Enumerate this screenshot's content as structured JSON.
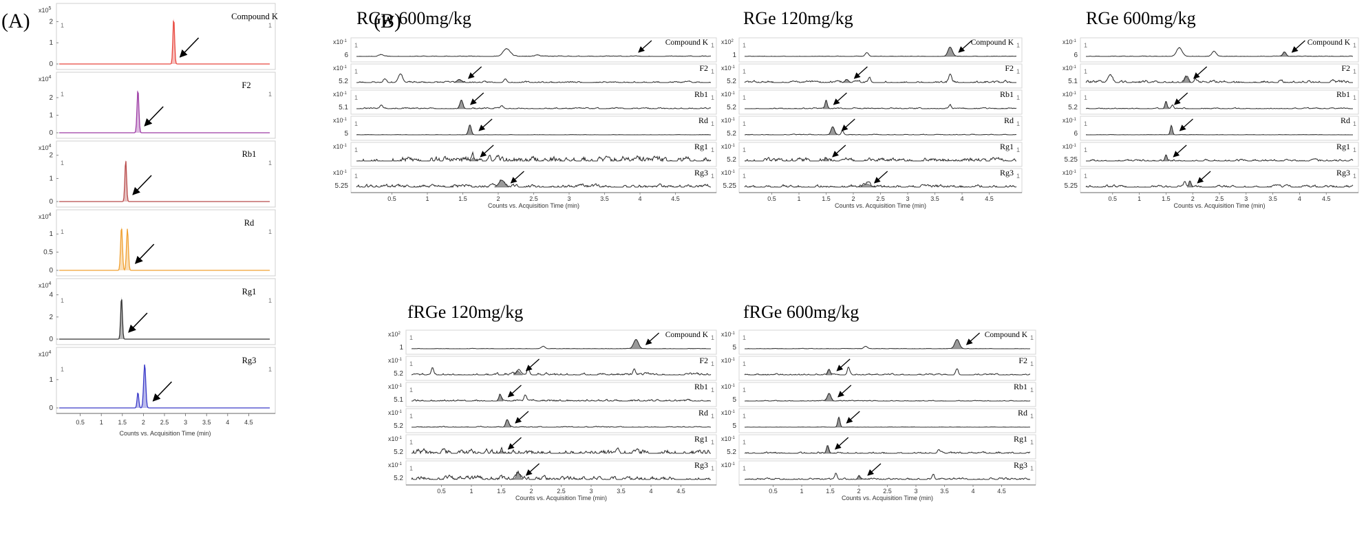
{
  "figure": {
    "panel_a_label": "(A)",
    "panel_b_label": "(B)",
    "xlabel": "Counts vs. Acquisition Time (min)",
    "x_ticks": [
      "0.5",
      "1",
      "1.5",
      "2",
      "2.5",
      "3",
      "3.5",
      "4",
      "4.5"
    ],
    "marker": "1"
  },
  "chart_data": [
    {
      "type": "line",
      "title": "(A)",
      "xlabel": "Counts vs. Acquisition Time (min)",
      "xlim": [
        0,
        5
      ],
      "traces": [
        {
          "name": "Compound K",
          "color": "#e8453c",
          "exponent": "5",
          "yticks": [
            "0",
            "1",
            "2"
          ],
          "ymax": 2.4,
          "peaks": [
            {
              "x": 2.72,
              "h": 2.15,
              "w": 0.02
            }
          ],
          "arrow_x": 2.82
        },
        {
          "name": "F2",
          "color": "#9c3aa4",
          "exponent": "4",
          "yticks": [
            "0",
            "1",
            "2"
          ],
          "ymax": 2.9,
          "peaks": [
            {
              "x": 1.87,
              "h": 2.45,
              "w": 0.022
            }
          ],
          "arrow_x": 1.98
        },
        {
          "name": "Rb1",
          "color": "#b84a4a",
          "exponent": "4",
          "yticks": [
            "0",
            "1",
            "2"
          ],
          "ymax": 2.2,
          "peaks": [
            {
              "x": 1.58,
              "h": 1.8,
              "w": 0.02
            }
          ],
          "arrow_x": 1.7
        },
        {
          "name": "Rd",
          "color": "#f0a030",
          "exponent": "4",
          "yticks": [
            "0",
            "0.5",
            "1"
          ],
          "ymax": 1.4,
          "peaks": [
            {
              "x": 1.48,
              "h": 1.2,
              "w": 0.022
            },
            {
              "x": 1.62,
              "h": 1.15,
              "w": 0.022
            }
          ],
          "arrow_x": 1.76
        },
        {
          "name": "Rg1",
          "color": "#333333",
          "exponent": "4",
          "yticks": [
            "0",
            "2",
            "4"
          ],
          "ymax": 4.6,
          "peaks": [
            {
              "x": 1.48,
              "h": 3.8,
              "w": 0.02
            }
          ],
          "arrow_x": 1.6
        },
        {
          "name": "Rg3",
          "color": "#3a3ac8",
          "exponent": "4",
          "yticks": [
            "0",
            "1"
          ],
          "ymax": 1.8,
          "peaks": [
            {
              "x": 1.87,
              "h": 0.55,
              "w": 0.02
            },
            {
              "x": 2.03,
              "h": 1.55,
              "w": 0.025
            }
          ],
          "arrow_x": 2.18
        }
      ]
    },
    {
      "type": "line",
      "title": "RGw 600mg/kg",
      "xlabel": "Counts vs. Acquisition Time (min)",
      "xlim": [
        0,
        5
      ],
      "traces": [
        {
          "name": "Compound K",
          "exponent": "-1",
          "ytick": "6",
          "peaks": [
            {
              "x": 2.12,
              "h": 0.6,
              "w": 0.05
            },
            {
              "x": 0.35,
              "h": 0.15,
              "w": 0.03
            },
            {
              "x": 2.55,
              "h": 0.12,
              "w": 0.03
            }
          ],
          "filled": [],
          "arrow_x": 3.95,
          "noise": 0.05,
          "seed": 11
        },
        {
          "name": "F2",
          "exponent": "-1",
          "ytick": "5.2",
          "peaks": [
            {
              "x": 0.62,
              "h": 0.7,
              "w": 0.03
            },
            {
              "x": 0.4,
              "h": 0.3,
              "w": 0.02
            },
            {
              "x": 1.45,
              "h": 0.25,
              "w": 0.03
            },
            {
              "x": 2.1,
              "h": 0.3,
              "w": 0.02
            }
          ],
          "filled": [
            1.45
          ],
          "arrow_x": 1.55,
          "noise": 0.12,
          "seed": 23
        },
        {
          "name": "Rb1",
          "exponent": "-1",
          "ytick": "5.1",
          "peaks": [
            {
              "x": 1.48,
              "h": 0.7,
              "w": 0.02
            },
            {
              "x": 0.35,
              "h": 0.3,
              "w": 0.02
            },
            {
              "x": 2.05,
              "h": 0.2,
              "w": 0.02
            }
          ],
          "filled": [
            1.48
          ],
          "arrow_x": 1.58,
          "noise": 0.1,
          "seed": 31
        },
        {
          "name": "Rd",
          "exponent": "-1",
          "ytick": "5",
          "peaks": [
            {
              "x": 1.6,
              "h": 0.8,
              "w": 0.02
            }
          ],
          "filled": [
            1.6
          ],
          "arrow_x": 1.7,
          "noise": 0.02,
          "seed": 41
        },
        {
          "name": "Rg1",
          "exponent": "-1",
          "ytick": "",
          "peaks": [
            {
              "x": 1.65,
              "h": 0.25,
              "w": 0.02
            }
          ],
          "filled": [
            1.65
          ],
          "arrow_x": 1.72,
          "noise": 0.45,
          "seed": 53
        },
        {
          "name": "Rg3",
          "exponent": "-1",
          "ytick": "5.25",
          "peaks": [
            {
              "x": 2.05,
              "h": 0.55,
              "w": 0.04
            }
          ],
          "filled": [
            2.05
          ],
          "arrow_x": 2.15,
          "noise": 0.25,
          "seed": 61
        }
      ]
    },
    {
      "type": "line",
      "title": "RGe 120mg/kg",
      "xlabel": "Counts vs. Acquisition Time (min)",
      "xlim": [
        0,
        5
      ],
      "traces": [
        {
          "name": "Compound K",
          "exponent": "2",
          "ytick": "1",
          "peaks": [
            {
              "x": 3.78,
              "h": 0.75,
              "w": 0.04
            },
            {
              "x": 2.25,
              "h": 0.3,
              "w": 0.03
            }
          ],
          "filled": [
            3.78
          ],
          "arrow_x": 3.9,
          "noise": 0.03,
          "seed": 71
        },
        {
          "name": "F2",
          "exponent": "-1",
          "ytick": "5.2",
          "peaks": [
            {
              "x": 3.78,
              "h": 0.7,
              "w": 0.025
            },
            {
              "x": 1.88,
              "h": 0.25,
              "w": 0.03
            },
            {
              "x": 2.3,
              "h": 0.4,
              "w": 0.02
            }
          ],
          "filled": [
            1.88
          ],
          "arrow_x": 1.98,
          "noise": 0.18,
          "seed": 83
        },
        {
          "name": "Rb1",
          "exponent": "-1",
          "ytick": "5.2",
          "peaks": [
            {
              "x": 1.5,
              "h": 0.7,
              "w": 0.02
            },
            {
              "x": 3.78,
              "h": 0.3,
              "w": 0.02
            }
          ],
          "filled": [
            1.5
          ],
          "arrow_x": 1.6,
          "noise": 0.08,
          "seed": 97
        },
        {
          "name": "Rd",
          "exponent": "-1",
          "ytick": "5.2",
          "peaks": [
            {
              "x": 1.62,
              "h": 0.65,
              "w": 0.03
            },
            {
              "x": 1.8,
              "h": 0.35,
              "w": 0.02
            }
          ],
          "filled": [
            1.62
          ],
          "arrow_x": 1.75,
          "noise": 0.06,
          "seed": 101
        },
        {
          "name": "Rg1",
          "exponent": "-1",
          "ytick": "5.2",
          "peaks": [
            {
              "x": 1.5,
              "h": 0.25,
              "w": 0.02
            }
          ],
          "filled": [
            1.5
          ],
          "arrow_x": 1.58,
          "noise": 0.3,
          "seed": 113
        },
        {
          "name": "Rg3",
          "exponent": "-1",
          "ytick": "5.25",
          "peaks": [
            {
              "x": 2.25,
              "h": 0.25,
              "w": 0.06
            }
          ],
          "filled": [
            2.25
          ],
          "arrow_x": 2.35,
          "noise": 0.22,
          "seed": 127
        }
      ]
    },
    {
      "type": "line",
      "title": "RGe 600mg/kg",
      "xlabel": "Counts vs. Acquisition Time (min)",
      "xlim": [
        0,
        5
      ],
      "traces": [
        {
          "name": "Compound K",
          "exponent": "-1",
          "ytick": "6",
          "peaks": [
            {
              "x": 1.75,
              "h": 0.7,
              "w": 0.05
            },
            {
              "x": 2.4,
              "h": 0.4,
              "w": 0.04
            },
            {
              "x": 3.72,
              "h": 0.35,
              "w": 0.03
            }
          ],
          "filled": [
            3.72
          ],
          "arrow_x": 3.82,
          "noise": 0.04,
          "seed": 131
        },
        {
          "name": "F2",
          "exponent": "-1",
          "ytick": "5.1",
          "peaks": [
            {
              "x": 0.45,
              "h": 0.6,
              "w": 0.04
            },
            {
              "x": 1.88,
              "h": 0.45,
              "w": 0.03
            },
            {
              "x": 2.05,
              "h": 0.3,
              "w": 0.02
            }
          ],
          "filled": [
            1.88
          ],
          "arrow_x": 1.98,
          "noise": 0.2,
          "seed": 139
        },
        {
          "name": "Rb1",
          "exponent": "-1",
          "ytick": "5.2",
          "peaks": [
            {
              "x": 1.5,
              "h": 0.6,
              "w": 0.02
            },
            {
              "x": 1.62,
              "h": 0.3,
              "w": 0.02
            }
          ],
          "filled": [
            1.5
          ],
          "arrow_x": 1.62,
          "noise": 0.08,
          "seed": 149
        },
        {
          "name": "Rd",
          "exponent": "-1",
          "ytick": "6",
          "peaks": [
            {
              "x": 1.6,
              "h": 0.75,
              "w": 0.02
            }
          ],
          "filled": [
            1.6
          ],
          "arrow_x": 1.72,
          "noise": 0.02,
          "seed": 151
        },
        {
          "name": "Rg1",
          "exponent": "-1",
          "ytick": "5.25",
          "peaks": [
            {
              "x": 1.5,
              "h": 0.5,
              "w": 0.02
            }
          ],
          "filled": [
            1.5
          ],
          "arrow_x": 1.6,
          "noise": 0.15,
          "seed": 163
        },
        {
          "name": "Rg3",
          "exponent": "-1",
          "ytick": "5.25",
          "peaks": [
            {
              "x": 1.95,
              "h": 0.5,
              "w": 0.02
            },
            {
              "x": 1.85,
              "h": 0.35,
              "w": 0.02
            }
          ],
          "filled": [
            1.95
          ],
          "arrow_x": 2.05,
          "noise": 0.18,
          "seed": 173
        }
      ]
    },
    {
      "type": "line",
      "title": "fRGe 120mg/kg",
      "xlabel": "Counts vs. Acquisition Time (min)",
      "xlim": [
        0,
        5
      ],
      "traces": [
        {
          "name": "Compound K",
          "exponent": "2",
          "ytick": "1",
          "peaks": [
            {
              "x": 3.75,
              "h": 0.75,
              "w": 0.04
            },
            {
              "x": 2.2,
              "h": 0.2,
              "w": 0.03
            }
          ],
          "filled": [
            3.75
          ],
          "arrow_x": 3.88,
          "noise": 0.03,
          "seed": 181
        },
        {
          "name": "F2",
          "exponent": "-1",
          "ytick": "5.2",
          "peaks": [
            {
              "x": 0.35,
              "h": 0.6,
              "w": 0.02
            },
            {
              "x": 1.78,
              "h": 0.3,
              "w": 0.03
            },
            {
              "x": 1.95,
              "h": 0.55,
              "w": 0.02
            },
            {
              "x": 3.72,
              "h": 0.5,
              "w": 0.02
            }
          ],
          "filled": [
            1.78
          ],
          "arrow_x": 1.88,
          "noise": 0.18,
          "seed": 191
        },
        {
          "name": "Rb1",
          "exponent": "-1",
          "ytick": "5.1",
          "peaks": [
            {
              "x": 1.48,
              "h": 0.55,
              "w": 0.02
            },
            {
              "x": 1.9,
              "h": 0.5,
              "w": 0.02
            }
          ],
          "filled": [
            1.48
          ],
          "arrow_x": 1.58,
          "noise": 0.15,
          "seed": 197
        },
        {
          "name": "Rd",
          "exponent": "-1",
          "ytick": "5.2",
          "peaks": [
            {
              "x": 1.6,
              "h": 0.6,
              "w": 0.025
            }
          ],
          "filled": [
            1.6
          ],
          "arrow_x": 1.7,
          "noise": 0.07,
          "seed": 211
        },
        {
          "name": "Rg1",
          "exponent": "-1",
          "ytick": "5.2",
          "peaks": [
            {
              "x": 1.5,
              "h": 0.2,
              "w": 0.02
            }
          ],
          "filled": [
            1.5
          ],
          "arrow_x": 1.58,
          "noise": 0.4,
          "seed": 223
        },
        {
          "name": "Rg3",
          "exponent": "-1",
          "ytick": "5.2",
          "peaks": [
            {
              "x": 1.78,
              "h": 0.55,
              "w": 0.03
            }
          ],
          "filled": [
            1.78
          ],
          "arrow_x": 1.88,
          "noise": 0.32,
          "seed": 227
        }
      ]
    },
    {
      "type": "line",
      "title": "fRGe 600mg/kg",
      "xlabel": "Counts vs. Acquisition Time (min)",
      "xlim": [
        0,
        5
      ],
      "traces": [
        {
          "name": "Compound K",
          "exponent": "-1",
          "ytick": "5",
          "peaks": [
            {
              "x": 3.72,
              "h": 0.75,
              "w": 0.04
            },
            {
              "x": 2.12,
              "h": 0.2,
              "w": 0.03
            }
          ],
          "filled": [
            3.72
          ],
          "arrow_x": 3.85,
          "noise": 0.03,
          "seed": 233
        },
        {
          "name": "F2",
          "exponent": "-1",
          "ytick": "",
          "peaks": [
            {
              "x": 1.48,
              "h": 0.45,
              "w": 0.02
            },
            {
              "x": 1.82,
              "h": 0.6,
              "w": 0.02
            },
            {
              "x": 3.72,
              "h": 0.5,
              "w": 0.02
            }
          ],
          "filled": [
            1.48
          ],
          "arrow_x": 1.58,
          "noise": 0.12,
          "seed": 239
        },
        {
          "name": "Rb1",
          "exponent": "-1",
          "ytick": "5",
          "peaks": [
            {
              "x": 1.48,
              "h": 0.6,
              "w": 0.03
            }
          ],
          "filled": [
            1.48
          ],
          "arrow_x": 1.6,
          "noise": 0.06,
          "seed": 241
        },
        {
          "name": "Rd",
          "exponent": "-1",
          "ytick": "5",
          "peaks": [
            {
              "x": 1.65,
              "h": 0.8,
              "w": 0.02
            }
          ],
          "filled": [
            1.65
          ],
          "arrow_x": 1.75,
          "noise": 0.02,
          "seed": 251
        },
        {
          "name": "Rg1",
          "exponent": "-1",
          "ytick": "5.2",
          "peaks": [
            {
              "x": 1.45,
              "h": 0.55,
              "w": 0.02
            },
            {
              "x": 3.4,
              "h": 0.3,
              "w": 0.02
            }
          ],
          "filled": [
            1.45
          ],
          "arrow_x": 1.55,
          "noise": 0.15,
          "seed": 257
        },
        {
          "name": "Rg3",
          "exponent": "-1",
          "ytick": "",
          "peaks": [
            {
              "x": 1.6,
              "h": 0.5,
              "w": 0.02
            },
            {
              "x": 2.0,
              "h": 0.25,
              "w": 0.02
            },
            {
              "x": 3.3,
              "h": 0.4,
              "w": 0.02
            }
          ],
          "filled": [
            2.0
          ],
          "arrow_x": 2.12,
          "noise": 0.15,
          "seed": 263
        }
      ]
    }
  ]
}
